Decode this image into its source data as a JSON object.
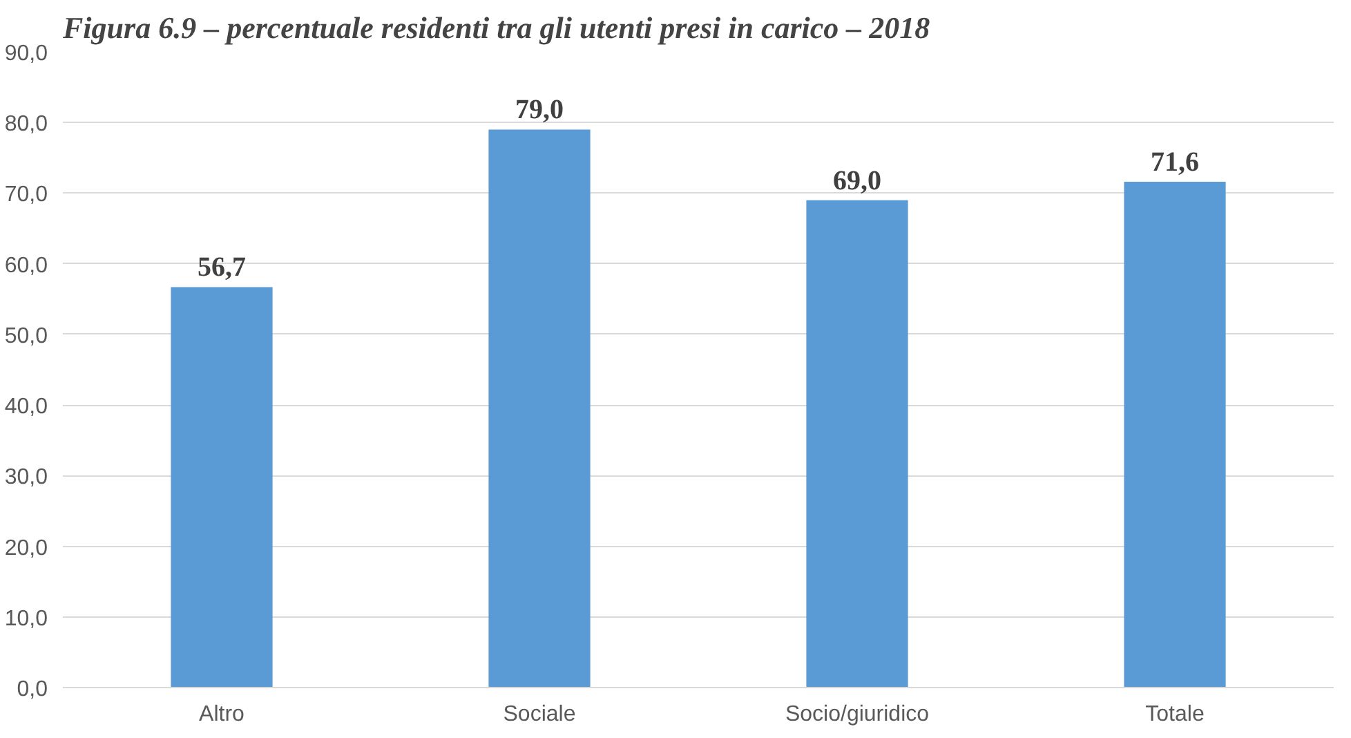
{
  "chart_data": {
    "type": "bar",
    "title": "Figura 6.9 – percentuale residenti tra gli utenti presi in carico – 2018",
    "categories": [
      "Altro",
      "Sociale",
      "Socio/giuridico",
      "Totale"
    ],
    "values": [
      56.7,
      79.0,
      69.0,
      71.6
    ],
    "value_labels": [
      "56,7",
      "79,0",
      "69,0",
      "71,6"
    ],
    "color": "#5b9bd5",
    "ylim": [
      0,
      90
    ],
    "yticks": [
      {
        "value": 0,
        "label": "0,0"
      },
      {
        "value": 10,
        "label": "10,0"
      },
      {
        "value": 20,
        "label": "20,0"
      },
      {
        "value": 30,
        "label": "30,0"
      },
      {
        "value": 40,
        "label": "40,0"
      },
      {
        "value": 50,
        "label": "50,0"
      },
      {
        "value": 60,
        "label": "60,0"
      },
      {
        "value": 70,
        "label": "70,0"
      },
      {
        "value": 80,
        "label": "80,0"
      },
      {
        "value": 90,
        "label": "90,0"
      }
    ],
    "grid": "y"
  }
}
